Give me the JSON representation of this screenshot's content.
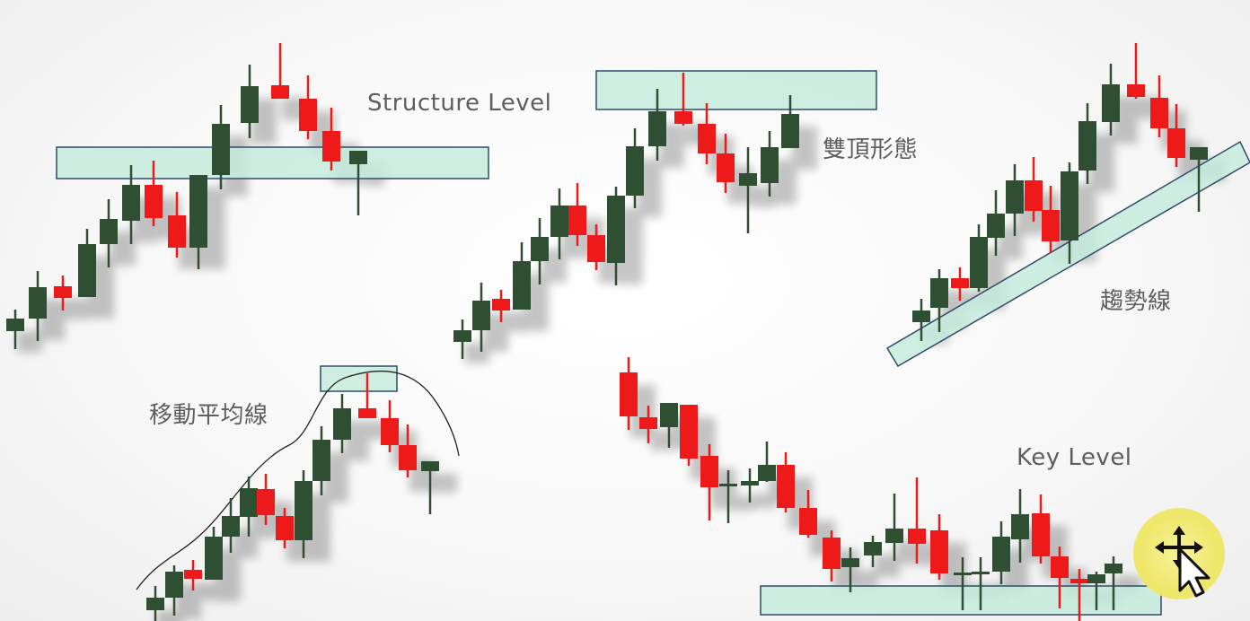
{
  "labels": {
    "structure_level": "Structure Level",
    "double_top": "雙頂形態",
    "trend_line": "趨勢線",
    "moving_average": "移動平均線",
    "key_level": "Key Level"
  },
  "colors": {
    "bull": "#2f4f33",
    "bear": "#ee1a1a",
    "zone_fill": "#c5ebdd",
    "zone_stroke": "#2e4a6e",
    "cursor_badge": "#efe66a"
  },
  "icons": {
    "cursor": "move-cursor-icon"
  }
}
